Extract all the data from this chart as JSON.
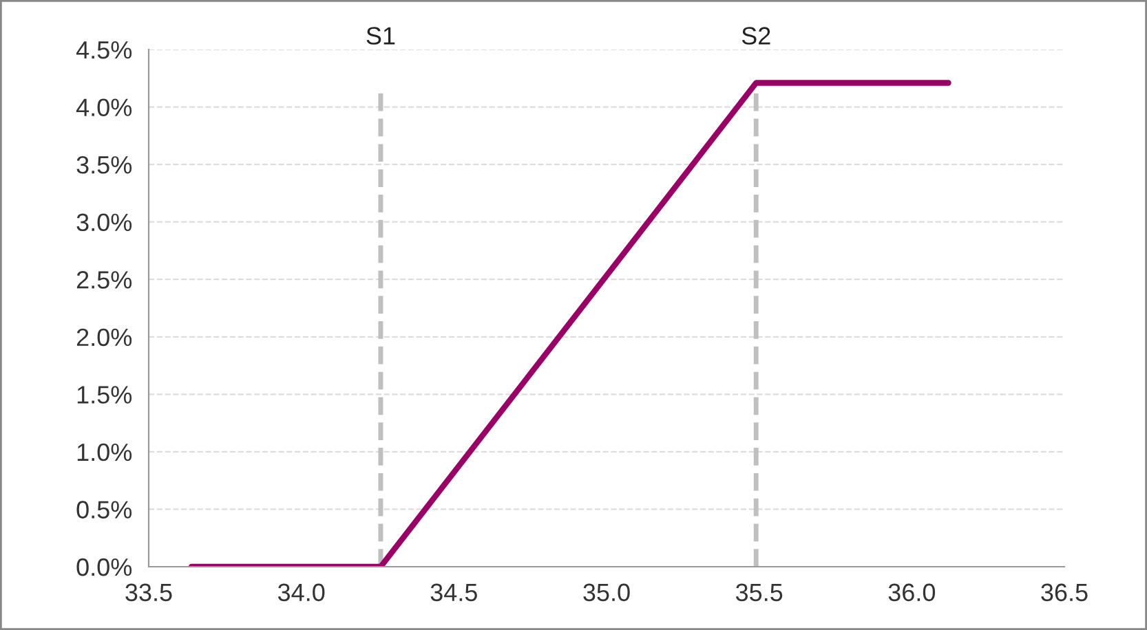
{
  "chart_data": {
    "type": "line",
    "x": [
      33.64,
      34.26,
      35.49,
      36.12
    ],
    "series": [
      {
        "color": "#990066",
        "values": [
          0,
          0,
          4.21,
          4.21
        ]
      }
    ],
    "xlim": [
      33.5,
      36.5
    ],
    "xticks": [
      {
        "value": 33.5,
        "label": "33.5"
      },
      {
        "value": 34.0,
        "label": "34.0"
      },
      {
        "value": 34.5,
        "label": "34.5"
      },
      {
        "value": 35.0,
        "label": "35.0"
      },
      {
        "value": 35.5,
        "label": "35.5"
      },
      {
        "value": 36.0,
        "label": "36.0"
      },
      {
        "value": 36.5,
        "label": "36.5"
      }
    ],
    "ylim": [
      0,
      4.5
    ],
    "yticks": [
      {
        "value": 0,
        "label": "0.0%"
      },
      {
        "value": 0.5,
        "label": "0.5%"
      },
      {
        "value": 1.0,
        "label": "1.0%"
      },
      {
        "value": 1.5,
        "label": "1.5%"
      },
      {
        "value": 2.0,
        "label": "2.0%"
      },
      {
        "value": 2.5,
        "label": "2.5%"
      },
      {
        "value": 3.0,
        "label": "3.0%"
      },
      {
        "value": 3.5,
        "label": "3.5%"
      },
      {
        "value": 4.0,
        "label": "4.0%"
      },
      {
        "value": 4.5,
        "label": "4.5%"
      }
    ],
    "ref_lines": [
      {
        "axis": "x",
        "value": 34.26,
        "label": "S1",
        "color": "#bfbfbf",
        "line_style": "dashed"
      },
      {
        "axis": "x",
        "value": 35.49,
        "label": "S2",
        "color": "#bfbfbf",
        "line_style": "dashed"
      }
    ],
    "grid": "y",
    "legend": false,
    "marker": "none",
    "line_style": "solid"
  }
}
